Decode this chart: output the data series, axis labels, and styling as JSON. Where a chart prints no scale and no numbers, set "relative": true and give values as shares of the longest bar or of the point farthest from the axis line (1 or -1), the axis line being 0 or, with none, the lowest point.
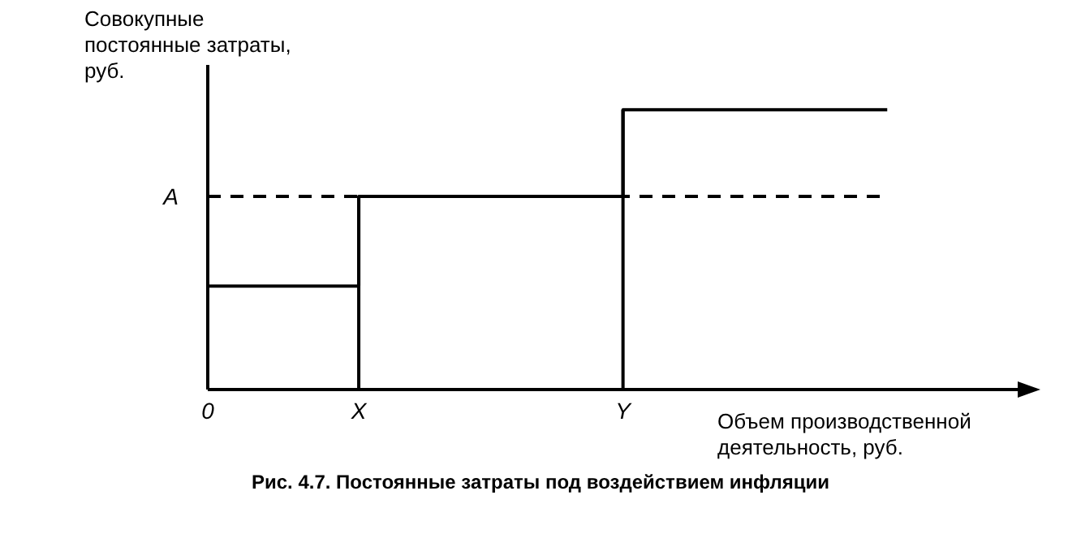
{
  "chart_data": {
    "type": "step",
    "title": "Рис. 4.7. Постоянные затраты под воздействием инфляции",
    "ylabel": "Совокупные постоянные затраты, руб.",
    "xlabel": "Объем производственной деятельность, руб.",
    "relative": true,
    "categories": [
      "0",
      null,
      null,
      null,
      "X",
      null,
      null,
      null,
      null,
      null,
      null,
      "Y",
      null,
      null,
      null,
      null,
      null,
      null,
      null
    ],
    "series": [
      {
        "color": "#000000",
        "values": [
          0.37,
          0.37,
          0.37,
          0.37,
          0.69,
          0.69,
          0.69,
          0.69,
          0.69,
          0.69,
          0.69,
          1,
          1,
          1,
          1,
          1,
          1,
          1,
          1
        ]
      }
    ],
    "ref_lines": [
      {
        "axis": "y",
        "value": 0.69,
        "label": "A",
        "line_style": "dashed",
        "color": "#000000"
      },
      {
        "axis": "x",
        "value": "X",
        "line_style": "solid",
        "color": "#000000"
      },
      {
        "axis": "x",
        "value": "Y",
        "line_style": "solid",
        "color": "#000000"
      }
    ],
    "grid": false,
    "legend": false,
    "marker": "none",
    "line_style": "solid"
  }
}
